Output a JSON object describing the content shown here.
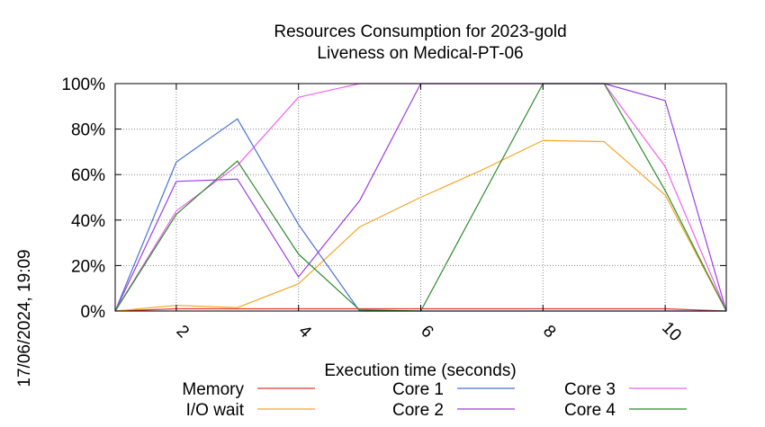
{
  "chart_data": {
    "type": "line",
    "title_line1": "Resources Consumption for 2023-gold",
    "title_line2": "Liveness on Medical-PT-06",
    "xlabel": "Execution time (seconds)",
    "ylabel": "",
    "side_label": "17/06/2024, 19:09",
    "xlim": [
      1,
      11
    ],
    "ylim": [
      0,
      100
    ],
    "x_ticks": [
      2,
      4,
      6,
      8,
      10
    ],
    "y_ticks": [
      {
        "value": 0,
        "label": "0%"
      },
      {
        "value": 20,
        "label": "20%"
      },
      {
        "value": 40,
        "label": "40%"
      },
      {
        "value": 60,
        "label": "60%"
      },
      {
        "value": 80,
        "label": "80%"
      },
      {
        "value": 100,
        "label": "100%"
      }
    ],
    "grid": true,
    "legend_position": "bottom",
    "x": [
      1,
      2,
      3,
      4,
      5,
      6,
      7,
      8,
      9,
      10,
      11
    ],
    "series": [
      {
        "name": "Memory",
        "color": "#e8392f",
        "values": [
          0,
          1,
          1,
          1,
          1,
          1,
          1,
          1,
          1,
          1,
          0
        ]
      },
      {
        "name": "I/O wait",
        "color": "#f5a623",
        "values": [
          0,
          2.5,
          1.5,
          12,
          37,
          50,
          62,
          75,
          74.5,
          51,
          0
        ]
      },
      {
        "name": "Core 1",
        "color": "#4a72d4",
        "values": [
          0,
          65.5,
          84.5,
          38,
          0,
          0,
          0,
          0,
          0,
          0,
          0
        ]
      },
      {
        "name": "Core 2",
        "color": "#9d3ee3",
        "values": [
          0,
          57,
          58,
          15,
          48.5,
          100,
          100,
          100,
          100,
          92.5,
          0
        ]
      },
      {
        "name": "Core 3",
        "color": "#f060f0",
        "values": [
          0,
          44,
          64,
          94,
          100,
          100,
          100,
          100,
          100,
          63.5,
          0
        ]
      },
      {
        "name": "Core 4",
        "color": "#2e8a2e",
        "values": [
          0,
          42.5,
          66,
          25,
          0.5,
          0,
          50,
          100,
          100,
          53,
          0
        ]
      }
    ]
  }
}
